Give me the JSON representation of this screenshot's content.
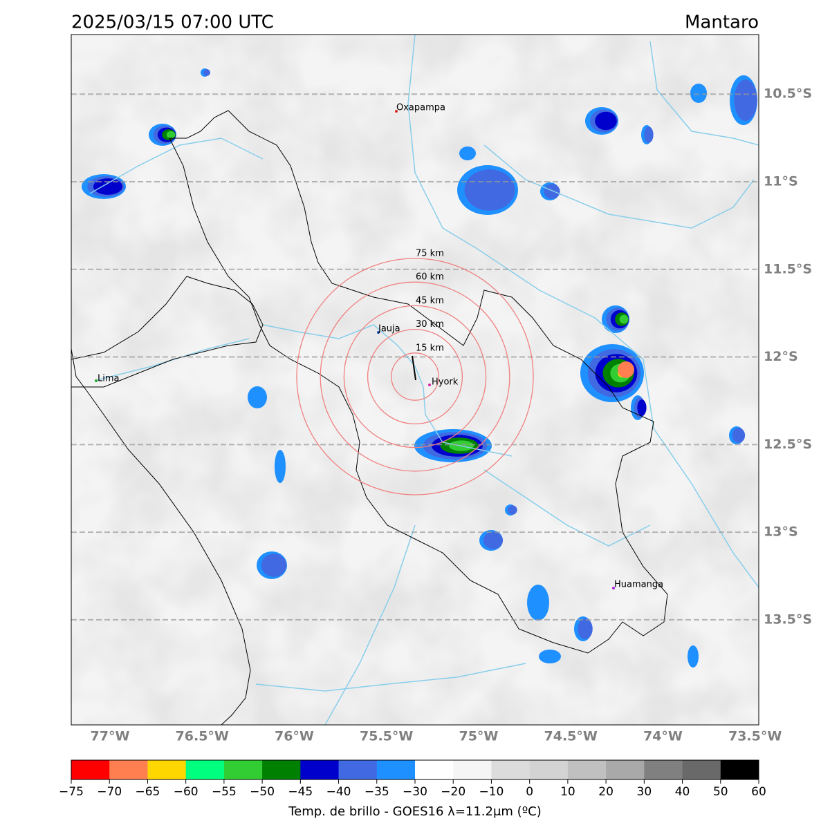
{
  "header": {
    "title": "2025/03/15 07:00 UTC",
    "region": "Mantaro"
  },
  "map": {
    "lonlim": [
      -77.21,
      -73.48
    ],
    "latlim": [
      -10.16,
      -14.1
    ],
    "lon_ticks": [
      {
        "value": -77,
        "label": "77°W"
      },
      {
        "value": -76.5,
        "label": "76.5°W"
      },
      {
        "value": -76,
        "label": "76°W"
      },
      {
        "value": -75.5,
        "label": "75.5°W"
      },
      {
        "value": -75,
        "label": "75°W"
      },
      {
        "value": -74.5,
        "label": "74.5°W"
      },
      {
        "value": -74,
        "label": "74°W"
      },
      {
        "value": -73.5,
        "label": "73.5°W"
      }
    ],
    "lat_ticks": [
      {
        "value": -10.5,
        "label": "10.5°S"
      },
      {
        "value": -11,
        "label": "11°S"
      },
      {
        "value": -11.5,
        "label": "11.5°S"
      },
      {
        "value": -12,
        "label": "12°S"
      },
      {
        "value": -12.5,
        "label": "12.5°S"
      },
      {
        "value": -13,
        "label": "13°S"
      },
      {
        "value": -13.5,
        "label": "13.5°S"
      }
    ],
    "rings": [
      {
        "value": 15,
        "label": "15 km"
      },
      {
        "value": 30,
        "label": "30 km"
      },
      {
        "value": 45,
        "label": "45 km"
      },
      {
        "value": 60,
        "label": "60 km"
      },
      {
        "value": 75,
        "label": "75 km"
      }
    ],
    "cities": [
      "Oxapampa",
      "Jauja",
      "Hyork",
      "Lima",
      "Huamanga"
    ]
  },
  "colorbar": {
    "label": "Temp. de brillo - GOES16 λ=11.2μm (ºC)",
    "ticks": [
      {
        "value": -75,
        "label": "−75"
      },
      {
        "value": -70,
        "label": "−70"
      },
      {
        "value": -65,
        "label": "−65"
      },
      {
        "value": -60,
        "label": "−60"
      },
      {
        "value": -55,
        "label": "−55"
      },
      {
        "value": -50,
        "label": "−50"
      },
      {
        "value": -45,
        "label": "−45"
      },
      {
        "value": -40,
        "label": "−40"
      },
      {
        "value": -35,
        "label": "−35"
      },
      {
        "value": -30,
        "label": "−30"
      },
      {
        "value": -20,
        "label": "−20"
      },
      {
        "value": -10,
        "label": "−10"
      },
      0,
      10,
      20,
      30,
      40,
      50,
      60
    ],
    "colors": [
      "#ff0000",
      "#ff7f50",
      "#ffd700",
      "#00ff7f",
      "#32cd32",
      "#008000",
      "#0000cd",
      "#4169e1",
      "#1e90ff",
      "#ffffff",
      "#f5f5f5",
      "#dcdcdc",
      "#d3d3d3",
      "#c0c0c0",
      "#a9a9a9",
      "#808080",
      "#696969",
      "#000000"
    ]
  }
}
